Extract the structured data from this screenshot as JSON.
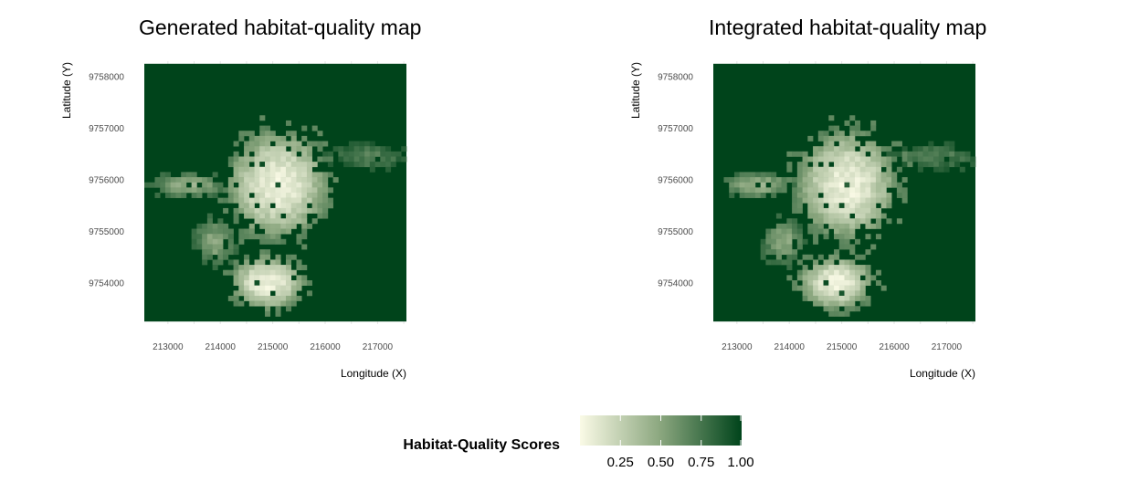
{
  "chart_data": [
    {
      "type": "heatmap",
      "title": "Generated habitat-quality map",
      "xlabel": "Longitude (X)",
      "ylabel": "Latitude (Y)",
      "xlim": [
        212550,
        217550
      ],
      "ylim": [
        9753200,
        9758300
      ],
      "x_ticks": [
        213000,
        214000,
        215000,
        216000,
        217000
      ],
      "x_tick_labels": [
        "213000",
        "214000",
        "215000",
        "216000",
        "217000"
      ],
      "y_ticks": [
        9754000,
        9755000,
        9756000,
        9757000,
        9758000
      ],
      "y_tick_labels": [
        "9754000",
        "9755000",
        "9756000",
        "9757000",
        "9758000"
      ],
      "raster_extent": {
        "xmin": 212550,
        "xmax": 217550,
        "ymin": 9753250,
        "ymax": 9758250
      },
      "background_value": 1.0,
      "regions": [
        {
          "name": "north-cluster",
          "center": [
            215100,
            9755900
          ],
          "radius": [
            1000,
            1100
          ],
          "min_value": 0.05
        },
        {
          "name": "south-cluster",
          "center": [
            214900,
            9754000
          ],
          "radius": [
            750,
            550
          ],
          "min_value": 0.05
        },
        {
          "name": "west-patches",
          "center": [
            213400,
            9755900
          ],
          "radius": [
            700,
            250
          ],
          "min_value": 0.45
        },
        {
          "name": "mid-west-patches",
          "center": [
            213900,
            9754800
          ],
          "radius": [
            400,
            450
          ],
          "min_value": 0.5
        },
        {
          "name": "east-patches",
          "center": [
            216800,
            9756450
          ],
          "radius": [
            750,
            250
          ],
          "min_value": 0.7
        }
      ]
    },
    {
      "type": "heatmap",
      "title": "Integrated habitat-quality map",
      "xlabel": "Longitude (X)",
      "ylabel": "Latitude (Y)",
      "xlim": [
        212550,
        217550
      ],
      "ylim": [
        9753200,
        9758300
      ],
      "x_ticks": [
        213000,
        214000,
        215000,
        216000,
        217000
      ],
      "x_tick_labels": [
        "213000",
        "214000",
        "215000",
        "216000",
        "217000"
      ],
      "y_ticks": [
        9754000,
        9755000,
        9756000,
        9757000,
        9758000
      ],
      "y_tick_labels": [
        "9754000",
        "9755000",
        "9756000",
        "9757000",
        "9758000"
      ],
      "raster_extent": {
        "xmin": 212550,
        "xmax": 217550,
        "ymin": 9753250,
        "ymax": 9758250
      },
      "background_value": 1.0,
      "regions": [
        {
          "name": "north-cluster",
          "center": [
            215100,
            9755900
          ],
          "radius": [
            1000,
            1100
          ],
          "min_value": 0.05
        },
        {
          "name": "south-cluster",
          "center": [
            214900,
            9754000
          ],
          "radius": [
            750,
            550
          ],
          "min_value": 0.05
        },
        {
          "name": "west-patches",
          "center": [
            213400,
            9755900
          ],
          "radius": [
            700,
            250
          ],
          "min_value": 0.45
        },
        {
          "name": "mid-west-patches",
          "center": [
            213900,
            9754800
          ],
          "radius": [
            400,
            450
          ],
          "min_value": 0.5
        },
        {
          "name": "east-patches",
          "center": [
            216800,
            9756450
          ],
          "radius": [
            750,
            250
          ],
          "min_value": 0.7
        }
      ]
    }
  ],
  "legend": {
    "title": "Habitat-Quality Scores",
    "ticks": [
      0.25,
      0.5,
      0.75,
      1.0
    ],
    "tick_labels": [
      "0.25",
      "0.50",
      "0.75",
      "1.00"
    ],
    "range": [
      0.0,
      1.0
    ],
    "color_low": "#fafae6",
    "color_high": "#00441b"
  },
  "colors": {
    "low": "#fafae6",
    "mid": "#8aa67e",
    "high": "#00441b",
    "grid": "#e6e6e6"
  }
}
